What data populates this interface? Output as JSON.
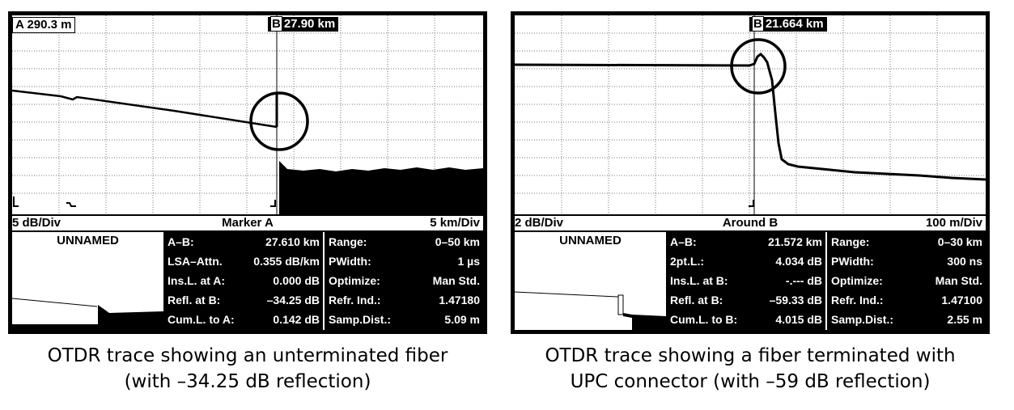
{
  "left": {
    "marker_a": "A 290.3 m",
    "marker_b_tag": "B",
    "marker_b_value": "27.90 km",
    "status": {
      "vertical": "5 dB/Div",
      "mode": "Marker A",
      "horizontal": "5 km/Div"
    },
    "name": "UNNAMED",
    "params_left": [
      {
        "label": "A–B:",
        "value": "27.610 km"
      },
      {
        "label": "LSA–Attn.",
        "value": "0.355 dB/km"
      },
      {
        "label": "Ins.L. at A:",
        "value": "0.000 dB"
      },
      {
        "label": "Refl. at B:",
        "value": "–34.25 dB"
      },
      {
        "label": "Cum.L. to A:",
        "value": "0.142 dB"
      }
    ],
    "params_right": [
      {
        "label": "Range:",
        "value": "0–50 km"
      },
      {
        "label": "PWidth:",
        "value": "1 µs"
      },
      {
        "label": "Optimize:",
        "value": "Man Std."
      },
      {
        "label": "Refr. Ind.:",
        "value": "1.47180"
      },
      {
        "label": "Samp.Dist.:",
        "value": "5.09 m"
      }
    ],
    "caption_line1": "OTDR trace showing an unterminated fiber",
    "caption_line2": "(with –34.25 dB reflection)"
  },
  "right": {
    "marker_b_tag": "B",
    "marker_b_value": "21.664 km",
    "status": {
      "vertical": "2 dB/Div",
      "mode": "Around B",
      "horizontal": "100 m/Div"
    },
    "name": "UNNAMED",
    "params_left": [
      {
        "label": "A–B:",
        "value": "21.572 km"
      },
      {
        "label": "2pt.L.:",
        "value": "4.034 dB"
      },
      {
        "label": "Ins.L. at B:",
        "value": "-.--- dB"
      },
      {
        "label": "Refl. at B:",
        "value": "–59.33 dB"
      },
      {
        "label": "Cum.L. to B:",
        "value": "4.015 dB"
      }
    ],
    "params_right": [
      {
        "label": "Range:",
        "value": "0–30 km"
      },
      {
        "label": "PWidth:",
        "value": "300 ns"
      },
      {
        "label": "Optimize:",
        "value": "Man Std."
      },
      {
        "label": "Refr. Ind.:",
        "value": "1.47100"
      },
      {
        "label": "Samp.Dist.:",
        "value": "2.55 m"
      }
    ],
    "caption_line1": "OTDR trace showing a fiber terminated with",
    "caption_line2": "UPC connector (with –59 dB reflection)"
  }
}
